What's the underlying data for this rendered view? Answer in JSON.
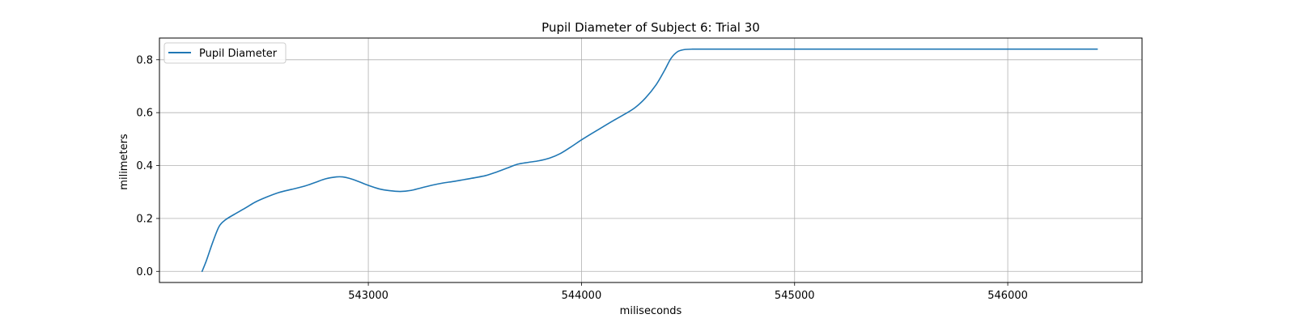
{
  "chart_data": {
    "type": "line",
    "title": "Pupil Diameter of Subject 6: Trial 30",
    "xlabel": "miliseconds",
    "ylabel": "milimeters",
    "xlim": [
      542020,
      546630
    ],
    "ylim": [
      -0.042,
      0.882
    ],
    "xticks": [
      543000,
      544000,
      545000,
      546000
    ],
    "xtick_labels": [
      "543000",
      "544000",
      "545000",
      "546000"
    ],
    "yticks": [
      0.0,
      0.2,
      0.4,
      0.6,
      0.8
    ],
    "ytick_labels": [
      "0.0",
      "0.2",
      "0.4",
      "0.6",
      "0.8"
    ],
    "grid": true,
    "legend_position": "upper-left",
    "series": [
      {
        "name": "Pupil Diameter",
        "color": "#1f77b4",
        "x": [
          542220,
          542240,
          542270,
          542300,
          542330,
          542370,
          542420,
          542470,
          542520,
          542580,
          542640,
          542700,
          542750,
          542800,
          542850,
          542880,
          542910,
          542950,
          543000,
          543050,
          543100,
          543150,
          543200,
          543250,
          543300,
          543350,
          543400,
          543450,
          543500,
          543550,
          543600,
          543650,
          543700,
          543750,
          543800,
          543850,
          543900,
          543950,
          544000,
          544050,
          544100,
          544150,
          544200,
          544250,
          544300,
          544350,
          544390,
          544420,
          544450,
          544480,
          544520,
          544600,
          545000,
          545500,
          546000,
          546420
        ],
        "y": [
          0.0,
          0.04,
          0.11,
          0.17,
          0.195,
          0.215,
          0.238,
          0.262,
          0.28,
          0.298,
          0.31,
          0.322,
          0.336,
          0.35,
          0.357,
          0.357,
          0.352,
          0.341,
          0.325,
          0.312,
          0.305,
          0.302,
          0.306,
          0.316,
          0.326,
          0.334,
          0.34,
          0.347,
          0.354,
          0.362,
          0.375,
          0.39,
          0.405,
          0.412,
          0.418,
          0.428,
          0.445,
          0.47,
          0.497,
          0.522,
          0.546,
          0.57,
          0.593,
          0.618,
          0.655,
          0.705,
          0.76,
          0.805,
          0.83,
          0.838,
          0.84,
          0.84,
          0.84,
          0.84,
          0.84,
          0.84
        ]
      }
    ]
  }
}
